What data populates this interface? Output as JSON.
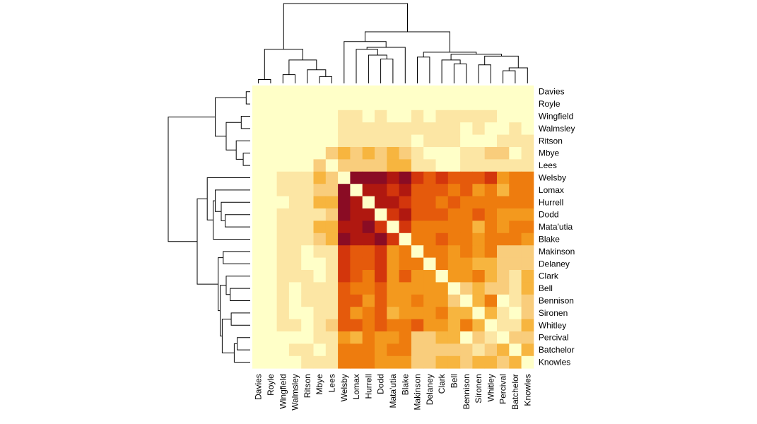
{
  "chart_data": {
    "type": "heatmap",
    "title": "",
    "xlabel": "",
    "ylabel": "",
    "grid": false,
    "legend": "none",
    "dendrograms": [
      "top",
      "left"
    ],
    "labels": [
      "Davies",
      "Royle",
      "Wingfield",
      "Walmsley",
      "Ritson",
      "Mbye",
      "Lees",
      "Welsby",
      "Lomax",
      "Hurrell",
      "Dodd",
      "Mata'utia",
      "Blake",
      "Makinson",
      "Delaney",
      "Clark",
      "Bell",
      "Bennison",
      "Sironen",
      "Whitley",
      "Percival",
      "Batchelor",
      "Knowles"
    ],
    "colors": [
      "#FFFFC8",
      "#FCE6A4",
      "#F9CD7C",
      "#F7B53F",
      "#F3991E",
      "#EE7C0E",
      "#E55A0C",
      "#D3360C",
      "#B01810",
      "#8A0C24"
    ],
    "scale_note": "0 = lightest, 9 = darkest",
    "matrix": [
      [
        0,
        0,
        0,
        0,
        0,
        0,
        0,
        0,
        0,
        0,
        0,
        0,
        0,
        0,
        0,
        0,
        0,
        0,
        0,
        0,
        0,
        0,
        0
      ],
      [
        0,
        0,
        0,
        0,
        0,
        0,
        0,
        0,
        0,
        0,
        0,
        0,
        0,
        0,
        0,
        0,
        0,
        0,
        0,
        0,
        0,
        0,
        0
      ],
      [
        0,
        0,
        0,
        0,
        0,
        0,
        0,
        1,
        1,
        0,
        1,
        0,
        0,
        1,
        0,
        1,
        1,
        1,
        1,
        1,
        0,
        0,
        0
      ],
      [
        0,
        0,
        0,
        0,
        0,
        0,
        0,
        1,
        1,
        1,
        1,
        1,
        1,
        1,
        1,
        1,
        1,
        0,
        1,
        0,
        0,
        1,
        0
      ],
      [
        0,
        0,
        0,
        0,
        0,
        0,
        0,
        1,
        1,
        1,
        1,
        1,
        1,
        0,
        1,
        1,
        1,
        0,
        0,
        0,
        1,
        1,
        1
      ],
      [
        0,
        0,
        0,
        0,
        0,
        0,
        2,
        3,
        2,
        3,
        2,
        3,
        2,
        1,
        0,
        0,
        0,
        1,
        1,
        2,
        2,
        0,
        1
      ],
      [
        0,
        0,
        0,
        0,
        0,
        2,
        0,
        2,
        2,
        2,
        2,
        3,
        3,
        1,
        1,
        0,
        0,
        1,
        1,
        1,
        1,
        1,
        1
      ],
      [
        0,
        0,
        1,
        1,
        1,
        3,
        2,
        0,
        9,
        9,
        9,
        8,
        9,
        7,
        6,
        7,
        6,
        6,
        6,
        7,
        4,
        5,
        5
      ],
      [
        0,
        0,
        1,
        1,
        1,
        2,
        2,
        9,
        0,
        8,
        8,
        7,
        8,
        6,
        6,
        6,
        5,
        6,
        4,
        5,
        3,
        5,
        5
      ],
      [
        0,
        0,
        0,
        1,
        1,
        3,
        3,
        9,
        8,
        0,
        8,
        8,
        7,
        6,
        6,
        5,
        6,
        5,
        5,
        5,
        5,
        5,
        5
      ],
      [
        0,
        0,
        1,
        1,
        1,
        1,
        2,
        9,
        8,
        8,
        0,
        7,
        8,
        6,
        6,
        6,
        5,
        5,
        6,
        5,
        4,
        4,
        4
      ],
      [
        0,
        0,
        1,
        1,
        1,
        3,
        3,
        8,
        8,
        9,
        7,
        0,
        7,
        5,
        5,
        5,
        5,
        5,
        3,
        5,
        4,
        5,
        5
      ],
      [
        0,
        0,
        1,
        1,
        1,
        2,
        3,
        9,
        8,
        8,
        9,
        7,
        0,
        5,
        5,
        6,
        5,
        5,
        4,
        5,
        5,
        5,
        4
      ],
      [
        0,
        0,
        1,
        1,
        0,
        1,
        1,
        7,
        6,
        6,
        7,
        4,
        5,
        0,
        5,
        5,
        4,
        5,
        4,
        5,
        2,
        2,
        2
      ],
      [
        0,
        0,
        1,
        1,
        0,
        0,
        1,
        7,
        6,
        6,
        7,
        4,
        5,
        5,
        0,
        5,
        4,
        4,
        3,
        3,
        2,
        2,
        2
      ],
      [
        0,
        0,
        1,
        1,
        1,
        0,
        1,
        7,
        6,
        5,
        7,
        4,
        6,
        4,
        4,
        0,
        4,
        4,
        5,
        3,
        2,
        1,
        3
      ],
      [
        0,
        0,
        1,
        0,
        1,
        1,
        1,
        6,
        5,
        5,
        6,
        4,
        4,
        4,
        4,
        4,
        0,
        2,
        3,
        2,
        2,
        1,
        3
      ],
      [
        0,
        0,
        1,
        0,
        1,
        1,
        1,
        6,
        6,
        4,
        6,
        4,
        4,
        5,
        4,
        4,
        2,
        0,
        3,
        5,
        0,
        1,
        2
      ],
      [
        0,
        0,
        1,
        0,
        0,
        1,
        1,
        6,
        4,
        5,
        6,
        3,
        4,
        4,
        4,
        5,
        3,
        3,
        0,
        3,
        1,
        0,
        2
      ],
      [
        0,
        0,
        1,
        1,
        0,
        1,
        2,
        6,
        6,
        5,
        6,
        5,
        5,
        6,
        4,
        4,
        3,
        5,
        3,
        0,
        1,
        1,
        3
      ],
      [
        0,
        0,
        0,
        0,
        0,
        1,
        1,
        4,
        3,
        5,
        4,
        4,
        5,
        2,
        2,
        3,
        3,
        0,
        2,
        1,
        0,
        2,
        2
      ],
      [
        0,
        0,
        0,
        1,
        1,
        0,
        1,
        5,
        5,
        5,
        4,
        5,
        5,
        2,
        2,
        2,
        2,
        2,
        1,
        2,
        3,
        0,
        3
      ],
      [
        0,
        0,
        0,
        0,
        1,
        1,
        1,
        5,
        5,
        5,
        4,
        4,
        4,
        2,
        2,
        3,
        3,
        2,
        3,
        3,
        2,
        3,
        0
      ]
    ],
    "dendrogram": {
      "order": [
        "Davies",
        "Royle",
        "Wingfield",
        "Walmsley",
        "Ritson",
        "Mbye",
        "Lees",
        "Welsby",
        "Lomax",
        "Hurrell",
        "Dodd",
        "Mata'utia",
        "Blake",
        "Makinson",
        "Delaney",
        "Clark",
        "Bell",
        "Bennison",
        "Sironen",
        "Whitley",
        "Percival",
        "Batchelor",
        "Knowles"
      ],
      "merges": [
        {
          "a": 0,
          "b": 1,
          "h": 0.4
        },
        {
          "a": 5,
          "b": 6,
          "h": 0.7
        },
        {
          "a": 2,
          "b": 3,
          "h": 0.9
        },
        {
          "a": 4,
          "b": "m1",
          "h": 1.4
        },
        {
          "a": "m2",
          "b": "m3",
          "h": 2.4
        },
        {
          "a": "m0",
          "b": "m4",
          "h": 3.5
        },
        {
          "a": 10,
          "b": 11,
          "h": 2.5
        },
        {
          "a": 9,
          "b": "m6",
          "h": 2.9
        },
        {
          "a": 8,
          "b": "m7",
          "h": 3.5
        },
        {
          "a": "m8",
          "b": 12,
          "h": 3.7
        },
        {
          "a": 7,
          "b": "m9",
          "h": 4.3
        },
        {
          "a": 20,
          "b": 21,
          "h": 1.3
        },
        {
          "a": "m11",
          "b": 22,
          "h": 1.6
        },
        {
          "a": 18,
          "b": 19,
          "h": 1.9
        },
        {
          "a": 16,
          "b": 17,
          "h": 2.0
        },
        {
          "a": 15,
          "b": "m14",
          "h": 2.4
        },
        {
          "a": 13,
          "b": 14,
          "h": 2.7
        },
        {
          "a": "m13",
          "b": "m12",
          "h": 2.8
        },
        {
          "a": "m15",
          "b": "m17",
          "h": 3.0
        },
        {
          "a": "m16",
          "b": "m18",
          "h": 3.2
        },
        {
          "a": "m10",
          "b": "m19",
          "h": 5.3
        },
        {
          "a": "m5",
          "b": "m20",
          "h": 8.2
        }
      ]
    }
  }
}
